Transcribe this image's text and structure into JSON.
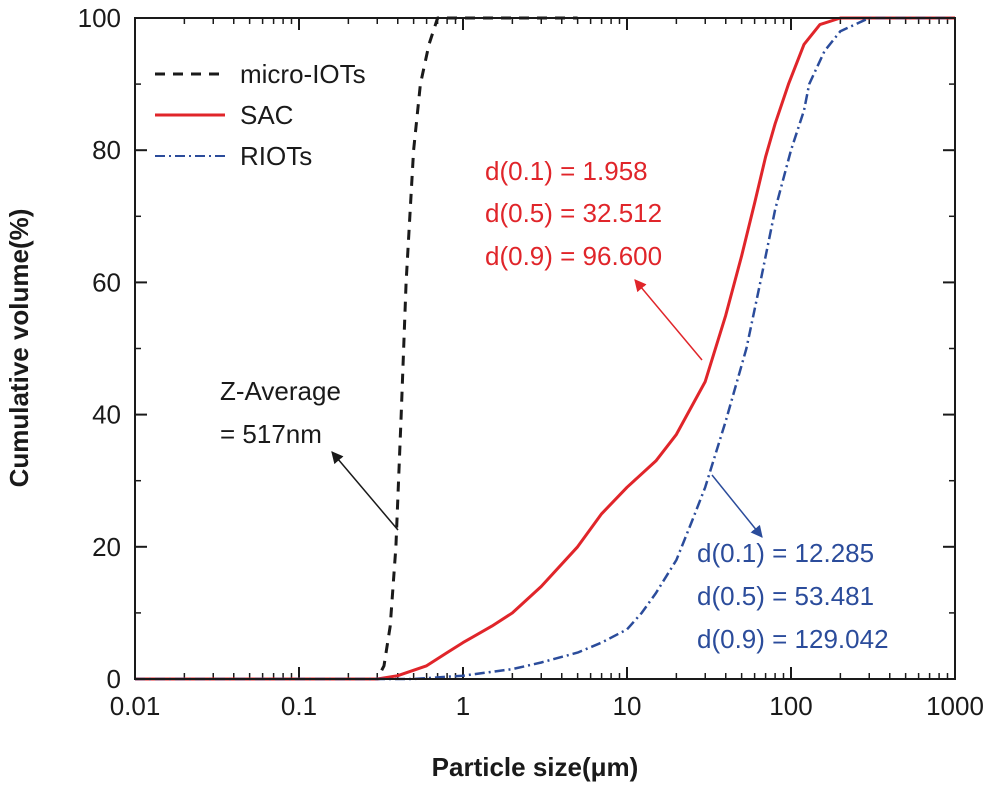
{
  "chart_data": {
    "type": "line",
    "xlabel": "Particle size(μm)",
    "ylabel": "Cumulative volume(%)",
    "xscale": "log",
    "xlim": [
      0.01,
      1000
    ],
    "ylim": [
      0,
      100
    ],
    "x_ticks": [
      "0.01",
      "0.1",
      "1",
      "10",
      "100",
      "1000"
    ],
    "y_ticks": [
      "0",
      "20",
      "40",
      "60",
      "80",
      "100"
    ],
    "grid": false,
    "legend": {
      "placement": "top-left"
    },
    "series": [
      {
        "name": "micro-IOTs",
        "color": "#1a1a1a",
        "dash": "dashed",
        "points": [
          [
            0.01,
            0
          ],
          [
            0.3,
            0
          ],
          [
            0.33,
            2
          ],
          [
            0.36,
            8
          ],
          [
            0.39,
            20
          ],
          [
            0.42,
            40
          ],
          [
            0.45,
            60
          ],
          [
            0.5,
            80
          ],
          [
            0.55,
            90
          ],
          [
            0.62,
            96
          ],
          [
            0.7,
            100
          ],
          [
            1.5,
            100
          ],
          [
            2.3,
            100
          ],
          [
            5,
            100
          ]
        ]
      },
      {
        "name": "SAC",
        "color": "#e0252a",
        "dash": "solid",
        "points": [
          [
            0.01,
            0
          ],
          [
            0.3,
            0
          ],
          [
            0.4,
            0.5
          ],
          [
            0.6,
            2
          ],
          [
            0.8,
            4
          ],
          [
            1,
            5.5
          ],
          [
            1.5,
            8
          ],
          [
            2,
            10
          ],
          [
            3,
            14
          ],
          [
            5,
            20
          ],
          [
            7,
            25
          ],
          [
            10,
            29
          ],
          [
            15,
            33
          ],
          [
            20,
            37
          ],
          [
            30,
            45
          ],
          [
            40,
            55
          ],
          [
            50,
            64
          ],
          [
            60,
            72
          ],
          [
            70,
            79
          ],
          [
            80,
            84
          ],
          [
            96.6,
            90
          ],
          [
            120,
            96
          ],
          [
            150,
            99
          ],
          [
            200,
            100
          ],
          [
            1000,
            100
          ]
        ]
      },
      {
        "name": "RIOTs",
        "color": "#2b4c9b",
        "dash": "dashdot",
        "points": [
          [
            0.01,
            0
          ],
          [
            0.5,
            0
          ],
          [
            1,
            0.5
          ],
          [
            2,
            1.5
          ],
          [
            3,
            2.5
          ],
          [
            5,
            4
          ],
          [
            7,
            5.5
          ],
          [
            10,
            7.5
          ],
          [
            12.285,
            10
          ],
          [
            15,
            13
          ],
          [
            20,
            18
          ],
          [
            25,
            24
          ],
          [
            30,
            29
          ],
          [
            40,
            39
          ],
          [
            53.481,
            50
          ],
          [
            65,
            60
          ],
          [
            80,
            71
          ],
          [
            100,
            80
          ],
          [
            120,
            86
          ],
          [
            129.042,
            90
          ],
          [
            160,
            95
          ],
          [
            200,
            98
          ],
          [
            300,
            100
          ],
          [
            1000,
            100
          ]
        ]
      }
    ],
    "annotations": [
      {
        "lines": [
          "Z-Average",
          "= 517nm"
        ],
        "color": "#1a1a1a"
      },
      {
        "lines": [
          "d(0.1) = 1.958",
          "d(0.5) = 32.512",
          "d(0.9) = 96.600"
        ],
        "color": "#e0252a"
      },
      {
        "lines": [
          "d(0.1) = 12.285",
          "d(0.5) = 53.481",
          "d(0.9) = 129.042"
        ],
        "color": "#2b4c9b"
      }
    ]
  }
}
